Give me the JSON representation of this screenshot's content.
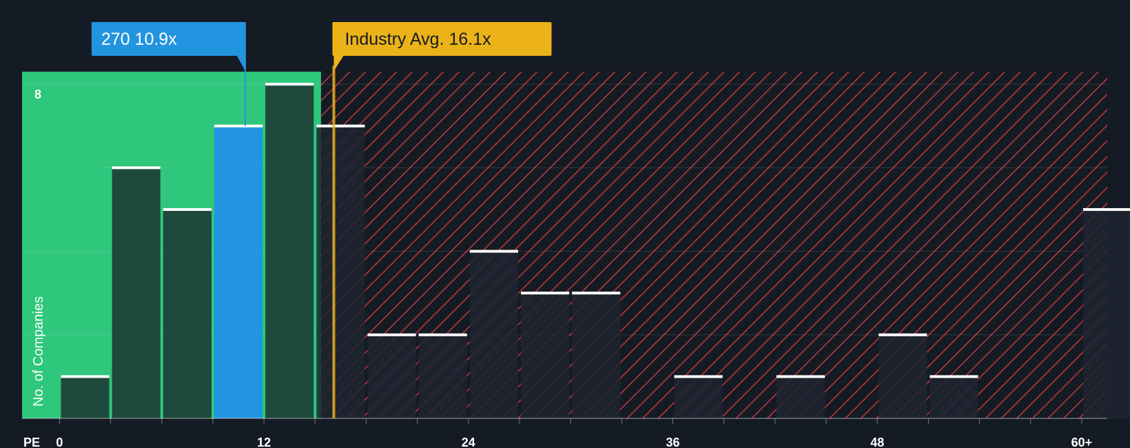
{
  "chart_data": {
    "type": "bar",
    "title": "",
    "xlabel": "PE",
    "ylabel": "No. of Companies",
    "x_ticks": [
      "0",
      "12",
      "24",
      "36",
      "48",
      "60+"
    ],
    "y_ticks": [
      "8"
    ],
    "ylim": [
      0,
      8.3
    ],
    "xlim": [
      -2.2,
      61.5
    ],
    "bins": [
      {
        "start": 0,
        "end": 3,
        "value": 1
      },
      {
        "start": 3,
        "end": 6,
        "value": 6
      },
      {
        "start": 6,
        "end": 9,
        "value": 5
      },
      {
        "start": 9,
        "end": 12,
        "value": 7,
        "highlight": true
      },
      {
        "start": 12,
        "end": 15,
        "value": 8
      },
      {
        "start": 15,
        "end": 18,
        "value": 7
      },
      {
        "start": 18,
        "end": 21,
        "value": 2
      },
      {
        "start": 21,
        "end": 24,
        "value": 2
      },
      {
        "start": 24,
        "end": 27,
        "value": 4
      },
      {
        "start": 27,
        "end": 30,
        "value": 3
      },
      {
        "start": 30,
        "end": 33,
        "value": 3
      },
      {
        "start": 33,
        "end": 36,
        "value": 0
      },
      {
        "start": 36,
        "end": 39,
        "value": 1
      },
      {
        "start": 39,
        "end": 42,
        "value": 0
      },
      {
        "start": 42,
        "end": 45,
        "value": 1
      },
      {
        "start": 45,
        "end": 48,
        "value": 0
      },
      {
        "start": 48,
        "end": 51,
        "value": 2
      },
      {
        "start": 51,
        "end": 54,
        "value": 1
      },
      {
        "start": 54,
        "end": 57,
        "value": 0
      },
      {
        "start": 57,
        "end": 60,
        "value": 0
      },
      {
        "start": 60,
        "end": 63,
        "value": 5
      }
    ],
    "company": {
      "label": "270 10.9x",
      "value": 10.9
    },
    "industry_avg": {
      "label": "Industry Avg. 16.1x",
      "value": 16.1
    },
    "green_zone_end": 15.35
  },
  "colors": {
    "background": "#151b24",
    "green_zone": "#2ec77c",
    "bar_in_green": "#1e4a3d",
    "bar_in_red": "#1f2530",
    "highlight_bar": "#2394e0",
    "red_zone": "#151b24",
    "hatch": "#c8363c",
    "callout_company": "#2394e0",
    "callout_industry": "#ecb318",
    "bar_cap": "#ffffff"
  }
}
